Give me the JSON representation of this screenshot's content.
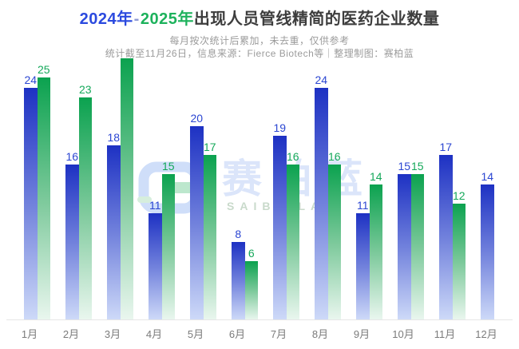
{
  "title": {
    "text_2024": "2024年",
    "dash": "-",
    "text_2025": "2025年",
    "suffix": "出现人员管线精简的医药企业数量"
  },
  "subtitle": {
    "line1": "每月按次统计后累加，未去重，仅供参考",
    "line2": "统计截至11月26日，信息来源：Fierce Biotech等｜整理制图：赛柏蓝"
  },
  "watermark": {
    "cn": "赛柏蓝",
    "en": "SAIBAILAN"
  },
  "colors": {
    "background": "#ffffff",
    "title_text": "#3d3d3d",
    "title_2024_blue": "#2b4adf",
    "title_2025_green": "#1db25c",
    "subtitle_gray": "#9b9b9b",
    "axis_label_gray": "#7b7b7b",
    "baseline_gray": "#e6e6e6",
    "bar_blue_top": "#1d31c3",
    "bar_green_top": "#0ba24f"
  },
  "chart_data": {
    "type": "bar",
    "title": "2024年-2025年出现人员管线精简的医药企业数量",
    "categories": [
      "1月",
      "2月",
      "3月",
      "4月",
      "5月",
      "6月",
      "7月",
      "8月",
      "9月",
      "10月",
      "11月",
      "12月"
    ],
    "series": [
      {
        "name": "2024年",
        "color": "#1d31c3",
        "color_mid": "#7484dd",
        "color_fade": "#cdd9f8",
        "label_color": "#2b46d2",
        "values": [
          24,
          16,
          18,
          11,
          20,
          8,
          19,
          24,
          11,
          15,
          17,
          14
        ]
      },
      {
        "name": "2025年",
        "color": "#0ba24f",
        "color_mid": "#7fca9d",
        "color_fade": "#e9f6ee",
        "label_color": "#14a85a",
        "values": [
          25,
          23,
          27,
          15,
          17,
          6,
          16,
          16,
          14,
          15,
          12,
          null
        ]
      }
    ],
    "hidden_value_labels": [
      {
        "series_index": 1,
        "category_index": 2,
        "note": "3月 2025 bar has no visible number; 27 estimated from bar height"
      }
    ],
    "ylim": [
      0,
      27
    ],
    "grid": false,
    "legend": "none",
    "data_labels": "above bars"
  }
}
